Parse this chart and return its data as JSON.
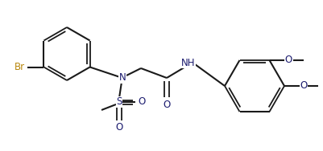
{
  "bg": "#ffffff",
  "lc": "#1a1a1a",
  "tc": "#1a1a6e",
  "br_c": "#b8860b",
  "lw": 1.5,
  "lw2": 1.3,
  "fs": 8.5,
  "figsize": [
    4.01,
    1.88
  ],
  "dpi": 100,
  "xlim": [
    0,
    401
  ],
  "ylim": [
    0,
    188
  ]
}
